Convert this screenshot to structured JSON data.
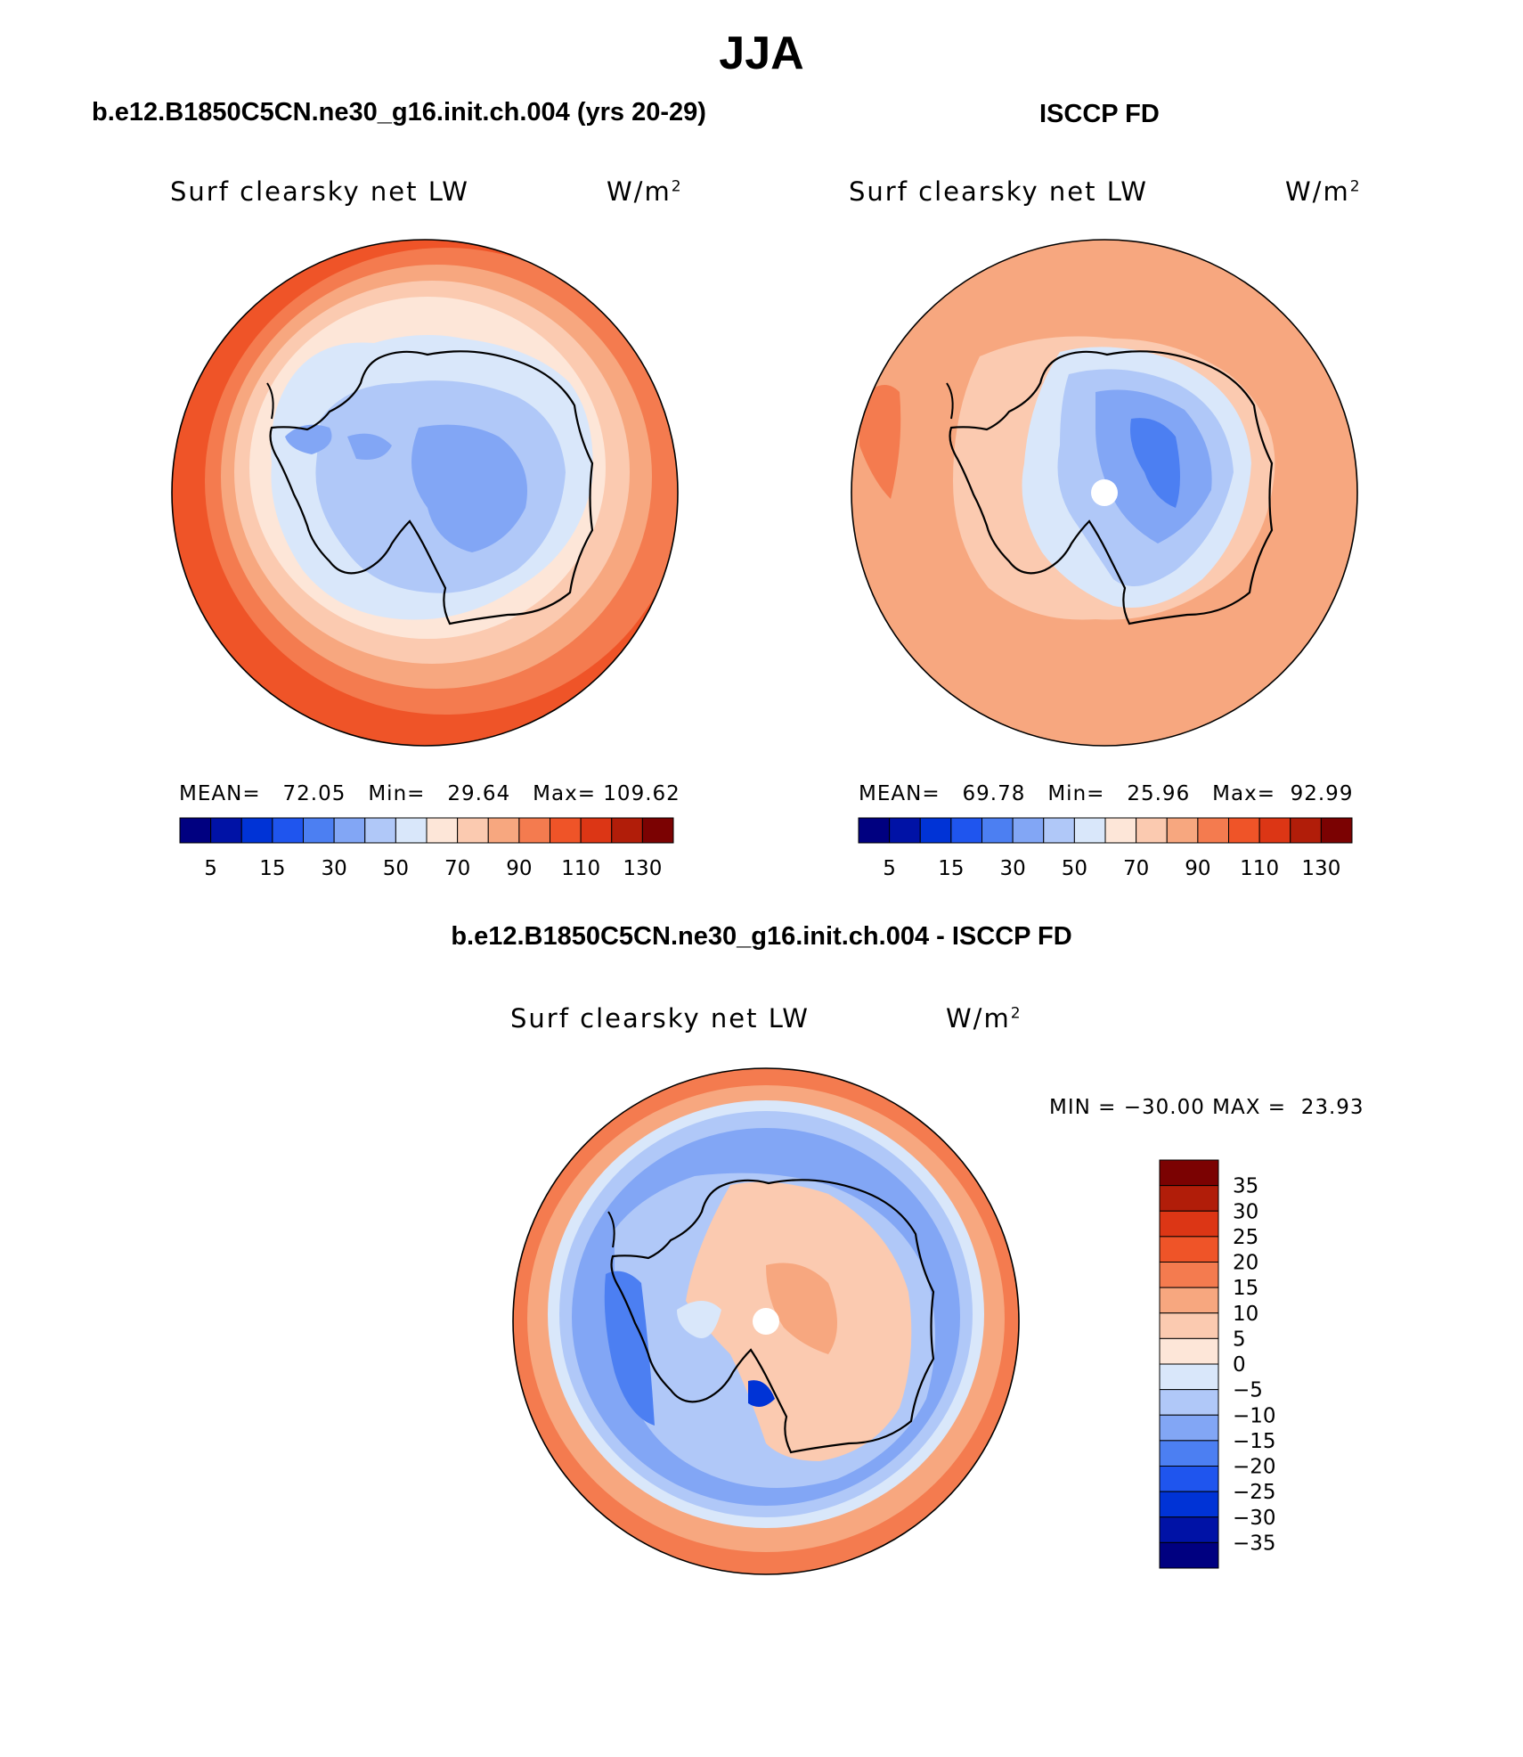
{
  "figure": {
    "title": "JJA",
    "panel_left_title": "b.e12.B1850C5CN.ne30_g16.init.ch.004 (yrs 20-29)",
    "panel_right_title": "ISCCP FD",
    "panel_diff_title": "b.e12.B1850C5CN.ne30_g16.init.ch.004 - ISCCP FD"
  },
  "panels": [
    {
      "variable": "Surf clearsky net LW",
      "units_base": "W/m",
      "units_exp": "2",
      "stats": {
        "mean_label": "MEAN=",
        "mean": "72.05",
        "min_label": "Min=",
        "min": "29.64",
        "max_label": "Max=",
        "max": "109.62"
      }
    },
    {
      "variable": "Surf clearsky net LW",
      "units_base": "W/m",
      "units_exp": "2",
      "stats": {
        "mean_label": "MEAN=",
        "mean": "69.78",
        "min_label": "Min=",
        "min": "25.96",
        "max_label": "Max=",
        "max": "92.99"
      }
    },
    {
      "variable": "Surf clearsky net LW",
      "units_base": "W/m",
      "units_exp": "2",
      "minmax_text": "MIN = −30.00 MAX =  23.93"
    }
  ],
  "colorbars": {
    "absolute": {
      "colors": [
        "#000080",
        "#0012a6",
        "#0033d6",
        "#1f55ee",
        "#4c7ff2",
        "#82a6f5",
        "#b0c8f8",
        "#d9e7fa",
        "#fde6d8",
        "#fbcab0",
        "#f7a77f",
        "#f47b4f",
        "#ef5428",
        "#dc3615",
        "#b11d09",
        "#7b0202"
      ],
      "labels": [
        "5",
        "15",
        "30",
        "50",
        "70",
        "90",
        "110",
        "130"
      ]
    },
    "difference": {
      "colors": [
        "#7b0202",
        "#b11d09",
        "#dc3615",
        "#ef5428",
        "#f47b4f",
        "#f7a77f",
        "#fbcab0",
        "#fde6d8",
        "#d9e7fa",
        "#b0c8f8",
        "#82a6f5",
        "#4c7ff2",
        "#1f55ee",
        "#0033d6",
        "#0012a6",
        "#000080"
      ],
      "labels": [
        "35",
        "30",
        "25",
        "20",
        "15",
        "10",
        "5",
        "0",
        "−5",
        "−10",
        "−15",
        "−20",
        "−25",
        "−30",
        "−35"
      ]
    }
  }
}
